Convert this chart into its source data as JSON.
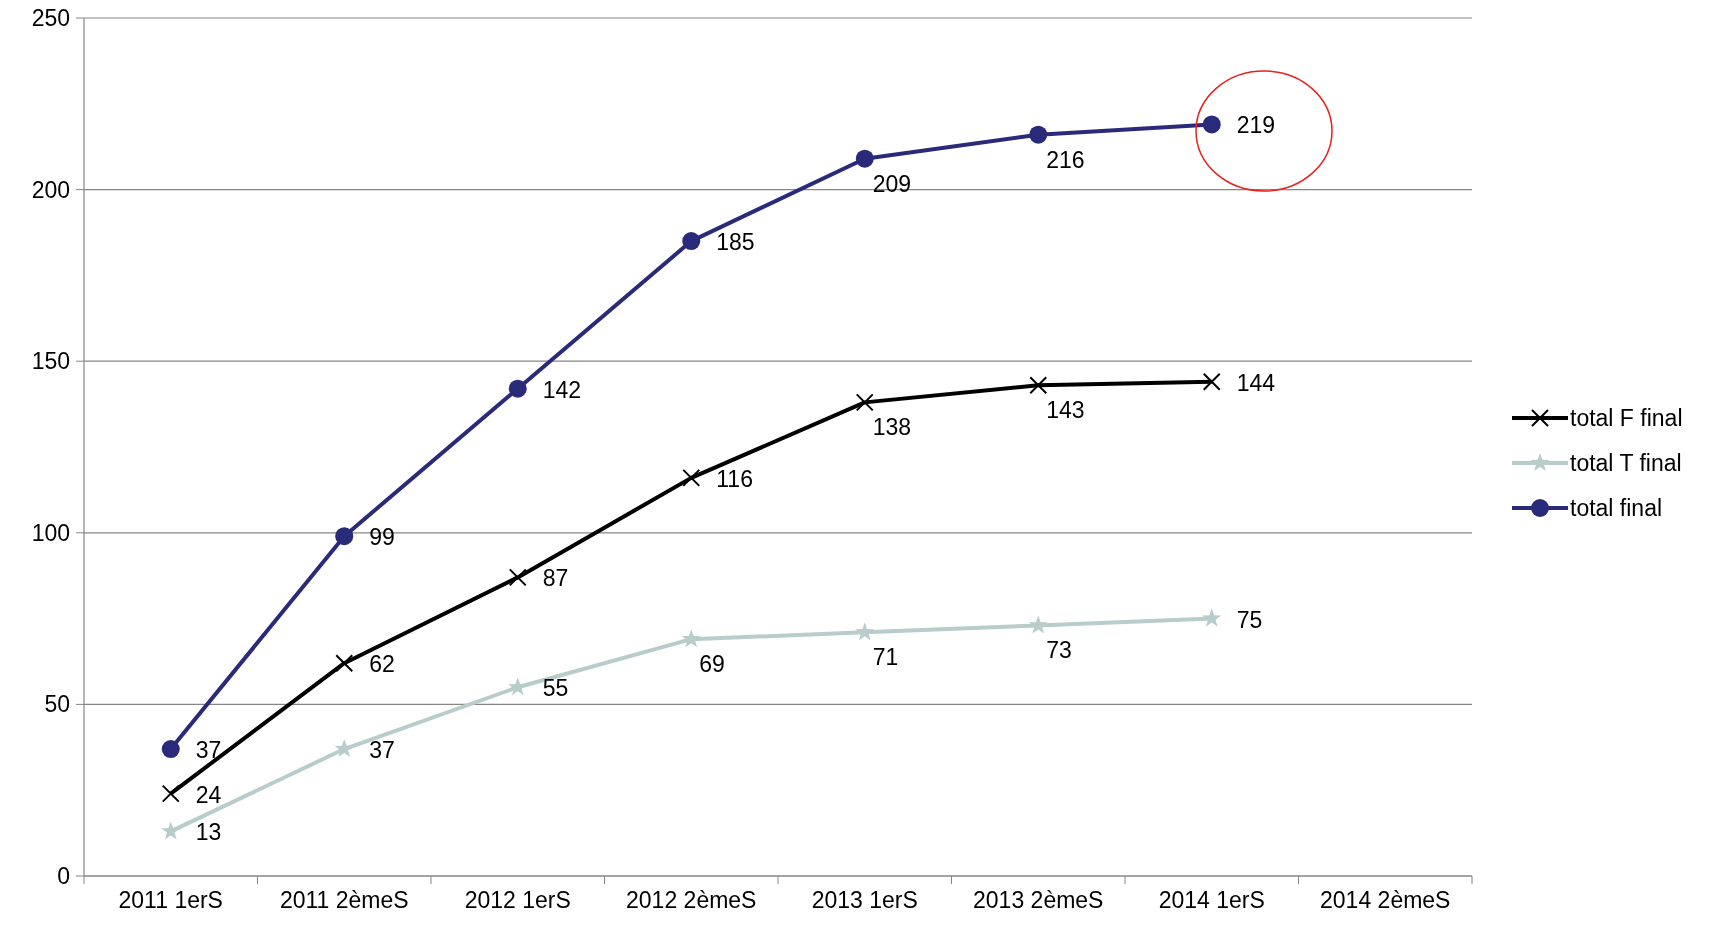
{
  "chart_data": {
    "type": "line",
    "categories": [
      "2011 1erS",
      "2011 2èmeS",
      "2012 1erS",
      "2012 2èmeS",
      "2013 1erS",
      "2013 2èmeS",
      "2014 1erS",
      "2014 2èmeS"
    ],
    "series": [
      {
        "name": "total F final",
        "color": "#000000",
        "marker": "cross",
        "values": [
          24,
          62,
          87,
          116,
          138,
          143,
          144,
          null
        ]
      },
      {
        "name": "total T final",
        "color": "#b8cccc",
        "marker": "star",
        "values": [
          13,
          37,
          55,
          69,
          71,
          73,
          75,
          null
        ]
      },
      {
        "name": "total final",
        "color": "#2a2a7a",
        "marker": "circle",
        "values": [
          37,
          99,
          142,
          185,
          209,
          216,
          219,
          null
        ]
      }
    ],
    "ylim": [
      0,
      250
    ],
    "yticks": [
      0,
      50,
      100,
      150,
      200,
      250
    ],
    "grid": "y",
    "legend": "right",
    "data_labels": true,
    "line_style": "solid"
  }
}
